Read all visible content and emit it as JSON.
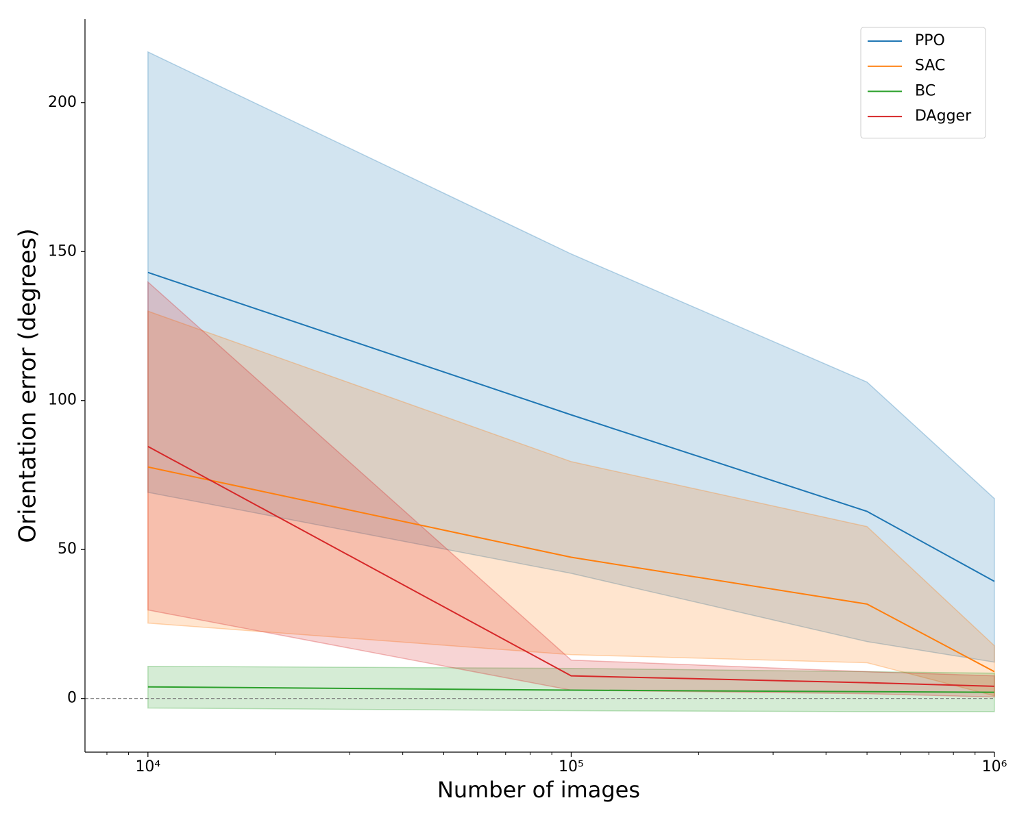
{
  "chart_data": {
    "type": "line",
    "xlabel": "Number of images",
    "ylabel": "Orientation error (degrees)",
    "xscale": "log",
    "x": [
      10000,
      100000,
      500000,
      1000000
    ],
    "series": [
      {
        "name": "PPO",
        "color": "#1f77b4",
        "values": [
          143,
          95.2,
          62.8,
          39.3
        ],
        "upper": [
          217,
          149.2,
          106.2,
          67.1
        ],
        "lower": [
          69.2,
          42,
          19.1,
          12.2
        ]
      },
      {
        "name": "SAC",
        "color": "#ff7f0e",
        "values": [
          77.7,
          47.4,
          31.7,
          9.0
        ],
        "upper": [
          130,
          79.5,
          57.7,
          17.7
        ],
        "lower": [
          25.3,
          14.7,
          12,
          0.9
        ]
      },
      {
        "name": "BC",
        "color": "#2ca02c",
        "values": [
          3.9,
          2.8,
          2.3,
          2.1
        ],
        "upper": [
          10.8,
          10.1,
          9.0,
          8.5
        ],
        "lower": [
          -3.2,
          -4.1,
          -4.4,
          -4.4
        ]
      },
      {
        "name": "DAgger",
        "color": "#d62728",
        "values": [
          84.6,
          7.6,
          5.3,
          4.1
        ],
        "upper": [
          139.8,
          12.9,
          9.0,
          7.6
        ],
        "lower": [
          29.7,
          2.8,
          1.6,
          0.5
        ]
      }
    ],
    "band_opacity": 0.2,
    "reference_line": 0,
    "xlim": [
      7100,
      1000000
    ],
    "ylim": [
      -18,
      228
    ],
    "xticks": [
      {
        "value": 10000,
        "label": "10⁴"
      },
      {
        "value": 100000,
        "label": "10⁵"
      },
      {
        "value": 1000000,
        "label": "10⁶"
      }
    ],
    "xminorticks": [
      8000,
      9000,
      20000,
      30000,
      40000,
      50000,
      60000,
      70000,
      80000,
      90000,
      200000,
      300000,
      400000,
      500000,
      600000,
      700000,
      800000,
      900000
    ],
    "yticks": [
      0,
      50,
      100,
      150,
      200
    ],
    "legend": "upper right"
  }
}
